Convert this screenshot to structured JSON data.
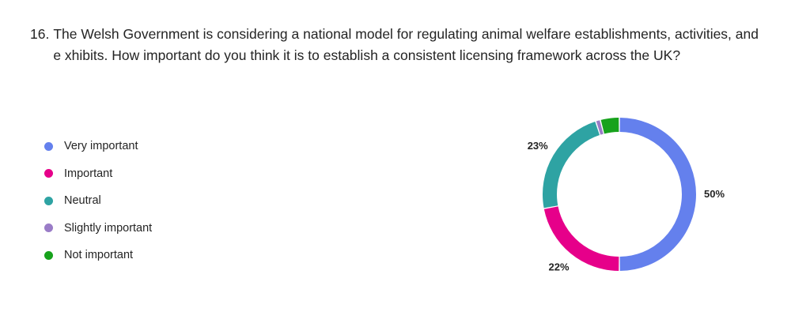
{
  "question": {
    "number": "16.",
    "text": "The Welsh Government is considering a national model for regulating animal welfare establishments, activities, and e xhibits. How important do you think it is to establish a consistent licensing framework across the UK?"
  },
  "chart_data": {
    "type": "pie",
    "style": "donut",
    "categories": [
      "Very important",
      "Important",
      "Neutral",
      "Slightly important",
      "Not important"
    ],
    "values": [
      50,
      22,
      23,
      1,
      4
    ],
    "colors": [
      "#6480ED",
      "#E6008A",
      "#2EA3A3",
      "#9A7CC7",
      "#17A21C"
    ],
    "data_labels": [
      "50%",
      "22%",
      "23%",
      "",
      ""
    ],
    "legend_position": "left"
  }
}
